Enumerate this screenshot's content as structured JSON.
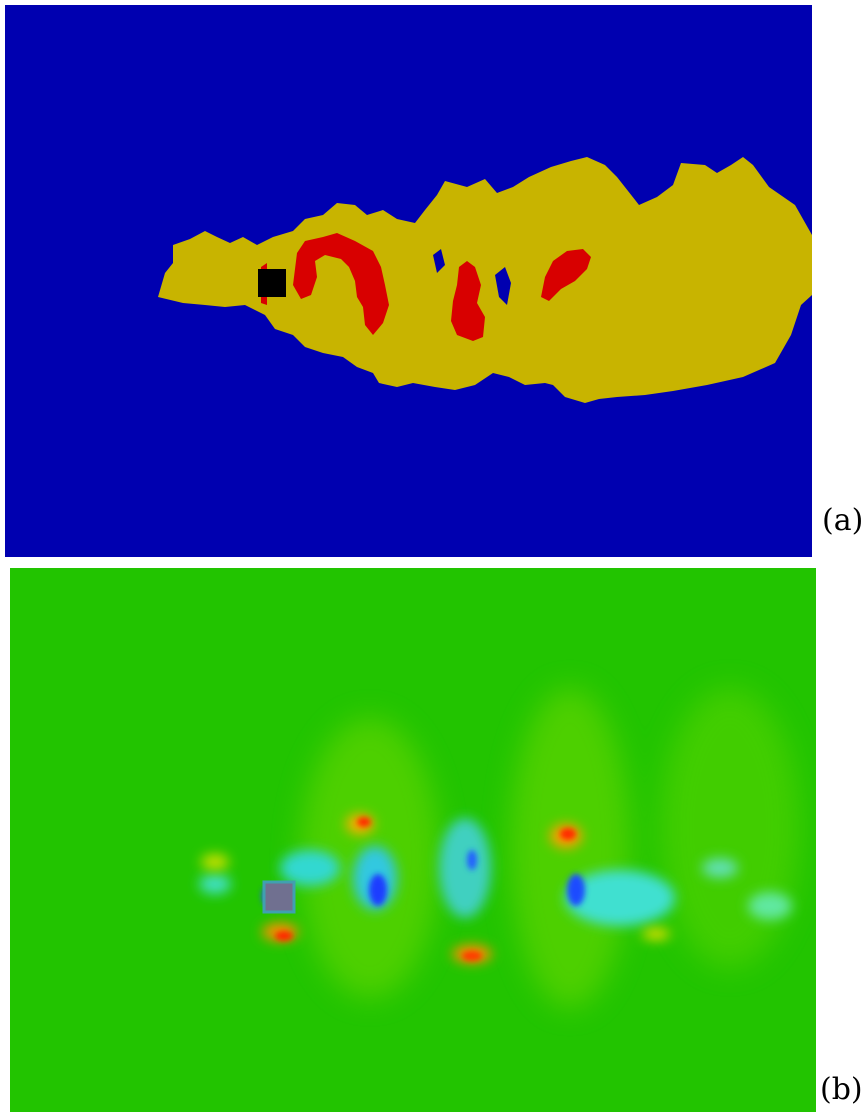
{
  "figure": {
    "panels": [
      {
        "id": "a",
        "label": "(a)",
        "content": "segmentation-map",
        "colors": {
          "background": "#0000b0",
          "region_primary": "#c8b400",
          "region_secondary": "#d80000",
          "obstacle": "#000000"
        }
      },
      {
        "id": "b",
        "label": "(b)",
        "content": "vorticity-field",
        "colors": {
          "background": "#22c400",
          "positive": "#ff2a00",
          "negative": "#1a3cff",
          "obstacle": "#707090"
        }
      }
    ]
  }
}
